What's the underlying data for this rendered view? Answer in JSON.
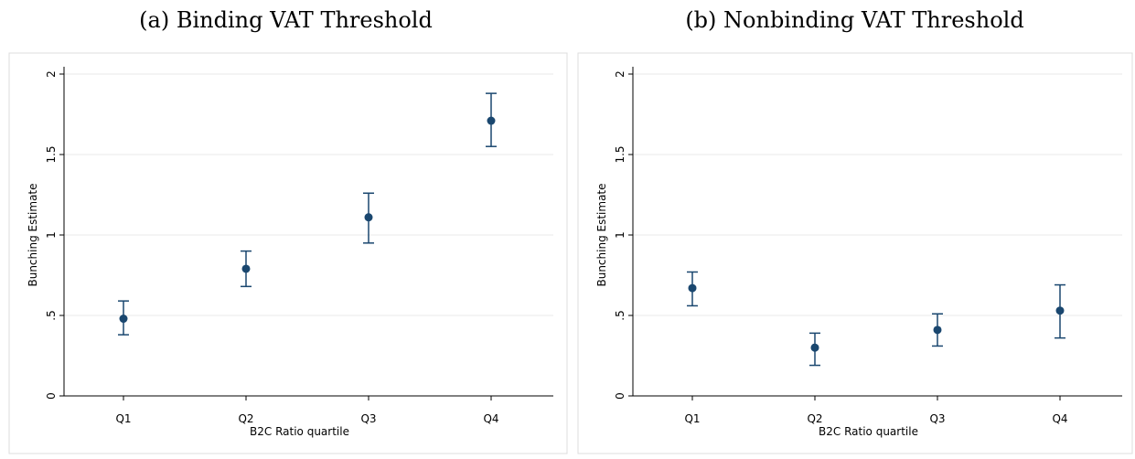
{
  "chart_data": [
    {
      "type": "errorpoint",
      "title": "(a) Binding VAT Threshold",
      "ylabel": "Bunching Estimate",
      "xlabel": "B2C Ratio quartile",
      "categories": [
        "Q1",
        "Q2",
        "Q3",
        "Q4"
      ],
      "series": [
        {
          "color": "#1a476f",
          "values": [
            0.48,
            0.79,
            1.11,
            1.71
          ],
          "lower": [
            0.38,
            0.68,
            0.95,
            1.55
          ],
          "upper": [
            0.59,
            0.9,
            1.26,
            1.88
          ]
        }
      ],
      "ylim": [
        0,
        2
      ],
      "yticks": [
        0,
        {
          "value": 0.5,
          "label": ".5"
        },
        1,
        1.5,
        2
      ],
      "grid": true
    },
    {
      "type": "errorpoint",
      "title": "(b) Nonbinding VAT Threshold",
      "ylabel": "Bunching Estimate",
      "xlabel": "B2C Ratio quartile",
      "categories": [
        "Q1",
        "Q2",
        "Q3",
        "Q4"
      ],
      "series": [
        {
          "color": "#1a476f",
          "values": [
            0.67,
            0.3,
            0.41,
            0.53
          ],
          "lower": [
            0.56,
            0.19,
            0.31,
            0.36
          ],
          "upper": [
            0.77,
            0.39,
            0.51,
            0.69
          ]
        }
      ],
      "ylim": [
        0,
        2
      ],
      "yticks": [
        0,
        {
          "value": 0.5,
          "label": ".5"
        },
        1,
        1.5,
        2
      ],
      "grid": true
    }
  ]
}
